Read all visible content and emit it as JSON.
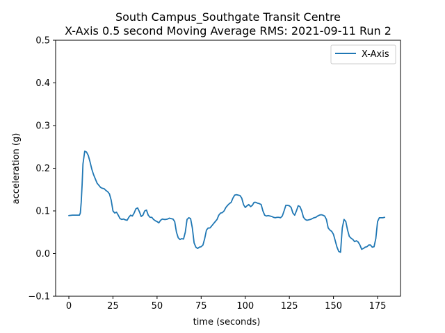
{
  "chart_data": {
    "type": "line",
    "title_line1": "South Campus_Southgate Transit Centre",
    "title_line2": "X-Axis 0.5 second Moving Average RMS: 2021-09-11 Run 2",
    "xlabel": "time (seconds)",
    "ylabel": "acceleration (g)",
    "xlim": [
      -7.5,
      188
    ],
    "ylim": [
      -0.1,
      0.5
    ],
    "xticks": [
      0,
      25,
      50,
      75,
      100,
      125,
      150,
      175
    ],
    "yticks": [
      -0.1,
      0.0,
      0.1,
      0.2,
      0.3,
      0.4,
      0.5
    ],
    "xtick_labels": [
      "0",
      "25",
      "50",
      "75",
      "100",
      "125",
      "150",
      "175"
    ],
    "ytick_labels": [
      "−0.1",
      "0.0",
      "0.1",
      "0.2",
      "0.3",
      "0.4",
      "0.5"
    ],
    "grid": false,
    "legend_position": "top-right",
    "series": [
      {
        "name": "X-Axis",
        "color": "#1f77b4",
        "x": [
          0,
          2,
          4,
          6,
          6.5,
          7,
          7.5,
          8,
          9,
          10,
          11,
          12,
          13,
          14,
          15,
          16,
          17,
          18,
          19,
          20,
          21,
          22,
          23,
          24,
          25,
          26,
          27,
          28,
          29,
          30,
          31,
          32,
          33,
          34,
          35,
          36,
          37,
          38,
          39,
          40,
          41,
          42,
          43,
          44,
          45,
          46,
          47,
          48,
          49,
          50,
          51,
          52,
          53,
          54,
          55,
          56,
          57,
          58,
          59,
          60,
          61,
          62,
          63,
          64,
          65,
          66,
          67,
          68,
          69,
          70,
          71,
          72,
          73,
          74,
          75,
          76,
          77,
          78,
          79,
          80,
          81,
          82,
          83,
          84,
          85,
          86,
          87,
          88,
          89,
          90,
          91,
          92,
          93,
          94,
          95,
          96,
          97,
          98,
          99,
          100,
          101,
          102,
          103,
          104,
          105,
          106,
          107,
          108,
          109,
          110,
          111,
          112,
          113,
          114,
          115,
          116,
          117,
          118,
          119,
          120,
          121,
          122,
          123,
          124,
          125,
          126,
          127,
          128,
          129,
          130,
          131,
          132,
          133,
          134,
          135,
          136,
          137,
          138,
          139,
          140,
          141,
          142,
          143,
          144,
          145,
          146,
          147,
          148,
          149,
          150,
          151,
          152,
          153,
          154,
          155,
          156,
          157,
          158,
          159,
          160,
          161,
          162,
          163,
          164,
          165,
          166,
          167,
          168,
          169,
          170,
          171,
          172,
          173,
          174,
          175,
          176,
          177,
          178,
          179
        ],
        "y": [
          0.089,
          0.09,
          0.09,
          0.09,
          0.095,
          0.12,
          0.16,
          0.21,
          0.24,
          0.238,
          0.23,
          0.215,
          0.198,
          0.185,
          0.175,
          0.165,
          0.16,
          0.155,
          0.153,
          0.152,
          0.148,
          0.145,
          0.14,
          0.125,
          0.1,
          0.095,
          0.097,
          0.09,
          0.082,
          0.08,
          0.081,
          0.079,
          0.078,
          0.085,
          0.09,
          0.088,
          0.095,
          0.105,
          0.107,
          0.098,
          0.087,
          0.09,
          0.1,
          0.102,
          0.09,
          0.085,
          0.085,
          0.08,
          0.077,
          0.075,
          0.072,
          0.078,
          0.081,
          0.08,
          0.08,
          0.081,
          0.083,
          0.082,
          0.081,
          0.075,
          0.05,
          0.037,
          0.033,
          0.035,
          0.034,
          0.05,
          0.08,
          0.084,
          0.082,
          0.06,
          0.025,
          0.015,
          0.012,
          0.015,
          0.016,
          0.02,
          0.035,
          0.055,
          0.06,
          0.06,
          0.065,
          0.07,
          0.075,
          0.08,
          0.09,
          0.095,
          0.096,
          0.1,
          0.108,
          0.113,
          0.117,
          0.12,
          0.13,
          0.137,
          0.138,
          0.137,
          0.136,
          0.13,
          0.115,
          0.108,
          0.112,
          0.115,
          0.11,
          0.113,
          0.12,
          0.12,
          0.118,
          0.117,
          0.115,
          0.1,
          0.09,
          0.088,
          0.089,
          0.088,
          0.087,
          0.085,
          0.084,
          0.085,
          0.085,
          0.084,
          0.088,
          0.1,
          0.113,
          0.113,
          0.112,
          0.108,
          0.095,
          0.09,
          0.1,
          0.112,
          0.11,
          0.1,
          0.085,
          0.08,
          0.078,
          0.079,
          0.08,
          0.082,
          0.084,
          0.085,
          0.088,
          0.09,
          0.091,
          0.09,
          0.088,
          0.08,
          0.06,
          0.055,
          0.052,
          0.045,
          0.03,
          0.015,
          0.005,
          0.003,
          0.06,
          0.08,
          0.075,
          0.055,
          0.04,
          0.036,
          0.033,
          0.028,
          0.03,
          0.027,
          0.02,
          0.01,
          0.012,
          0.015,
          0.016,
          0.02,
          0.02,
          0.015,
          0.016,
          0.035,
          0.075,
          0.084,
          0.084,
          0.084,
          0.085
        ]
      }
    ]
  }
}
